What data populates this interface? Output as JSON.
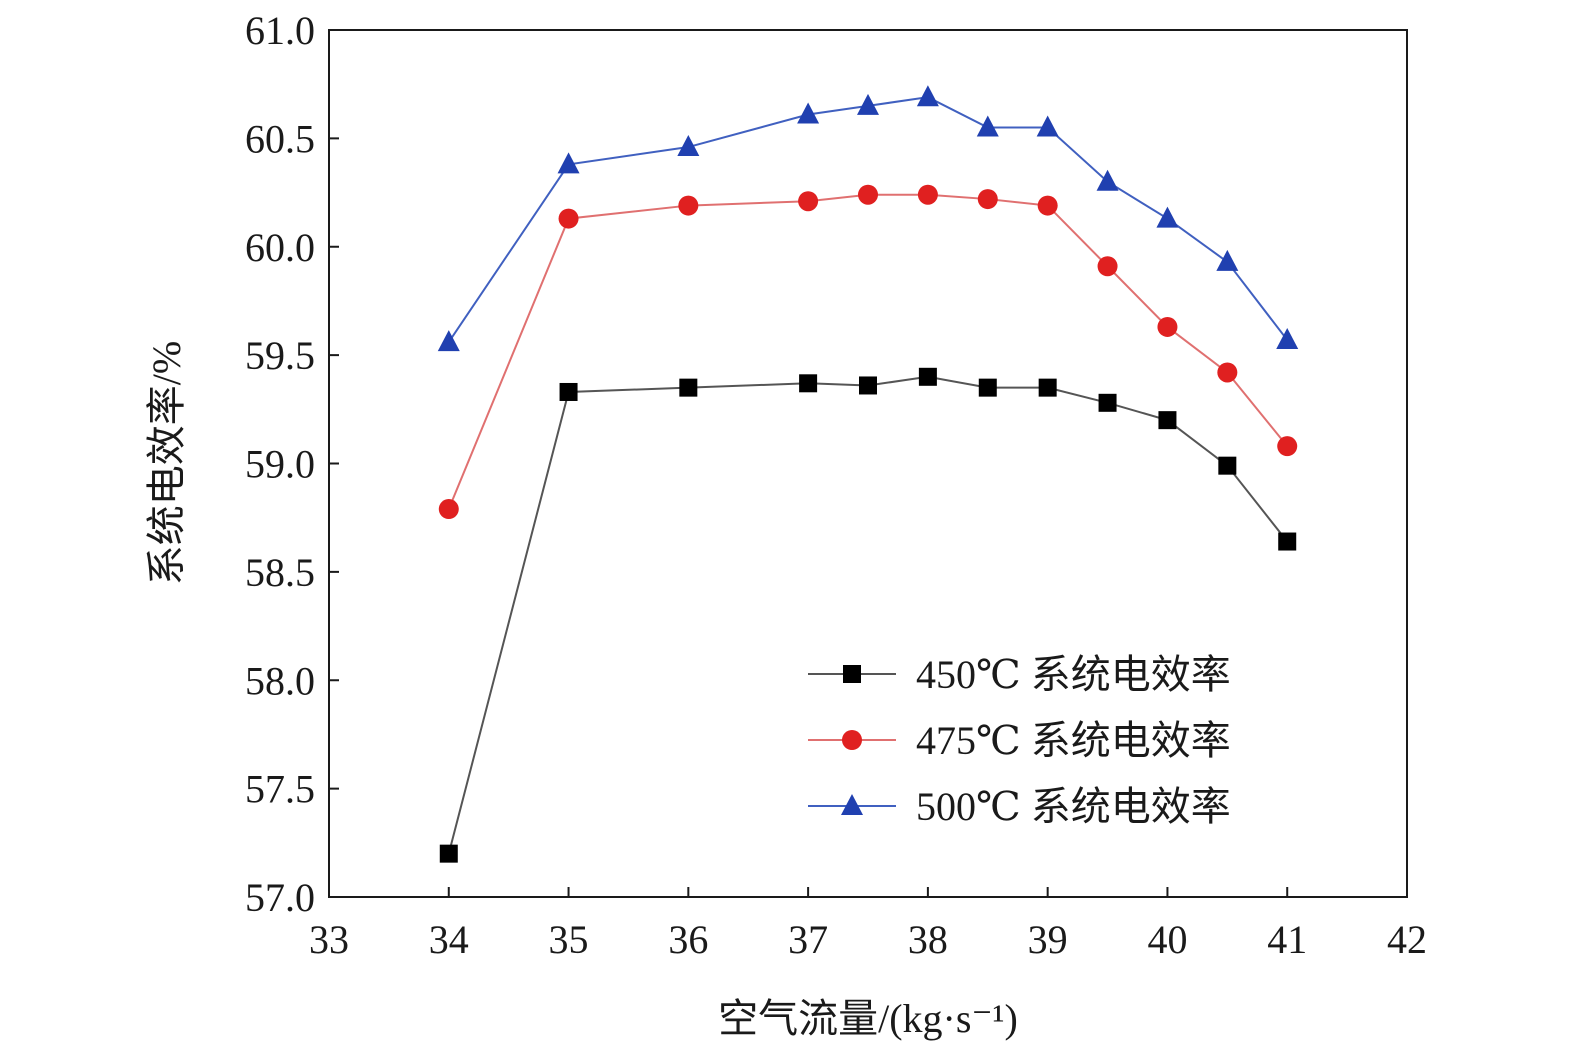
{
  "chart_data": {
    "type": "line",
    "xlabel": "空气流量/(kg·s⁻¹)",
    "ylabel": "系统电效率/%",
    "xlim": [
      33,
      42
    ],
    "ylim": [
      57.0,
      61.0
    ],
    "x_ticks": [
      33,
      34,
      35,
      36,
      37,
      38,
      39,
      40,
      41,
      42
    ],
    "x_tick_labels": [
      "33",
      "34",
      "35",
      "36",
      "37",
      "38",
      "39",
      "40",
      "41",
      "42"
    ],
    "y_ticks": [
      57.0,
      57.5,
      58.0,
      58.5,
      59.0,
      59.5,
      60.0,
      60.5,
      61.0
    ],
    "y_tick_labels": [
      "57.0",
      "57.5",
      "58.0",
      "58.5",
      "59.0",
      "59.5",
      "60.0",
      "60.5",
      "61.0"
    ],
    "grid": false,
    "legend_position": "bottom-right",
    "x": [
      34,
      35,
      36,
      37,
      37.5,
      38,
      38.5,
      39,
      39.5,
      40,
      40.5,
      41
    ],
    "series": [
      {
        "name": "450℃ 系统电效率",
        "marker": "square",
        "color": "#000000",
        "line_color": "#555555",
        "values": [
          57.2,
          59.33,
          59.35,
          59.37,
          59.36,
          59.4,
          59.35,
          59.35,
          59.28,
          59.2,
          58.99,
          58.64
        ]
      },
      {
        "name": "475℃ 系统电效率",
        "marker": "circle",
        "color": "#e02020",
        "line_color": "#e07070",
        "values": [
          58.79,
          60.13,
          60.19,
          60.21,
          60.24,
          60.24,
          60.22,
          60.19,
          59.91,
          59.63,
          59.42,
          59.08
        ]
      },
      {
        "name": "500℃ 系统电效率",
        "marker": "triangle",
        "color": "#2040b0",
        "line_color": "#4060c0",
        "values": [
          59.56,
          60.38,
          60.46,
          60.61,
          60.65,
          60.69,
          60.55,
          60.55,
          60.3,
          60.13,
          59.93,
          59.57
        ]
      }
    ]
  }
}
